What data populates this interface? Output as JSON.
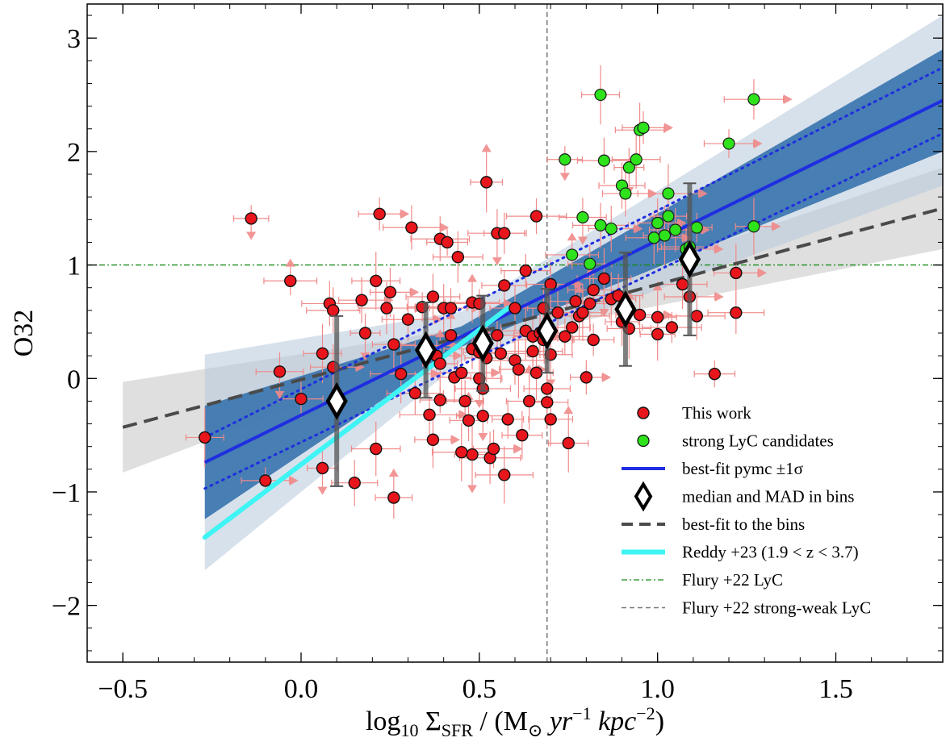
{
  "chart_data": {
    "type": "scatter",
    "title": "",
    "xlabel_parts": {
      "a": "log",
      "a_sub": "10",
      "b": " Σ",
      "b_sub": "SFR",
      "c": " / (M",
      "c_sub": "⊙",
      "d": " yr",
      "d_sup": "−1",
      "e": " kpc",
      "e_sup": "−2",
      "f": ")"
    },
    "ylabel": "O32",
    "xlim": [
      -0.6,
      1.8
    ],
    "ylim": [
      -2.5,
      3.3
    ],
    "xticks": [
      {
        "v": -0.5,
        "label": "−0.5"
      },
      {
        "v": 0.0,
        "label": "0.0"
      },
      {
        "v": 0.5,
        "label": "0.5"
      },
      {
        "v": 1.0,
        "label": "1.0"
      },
      {
        "v": 1.5,
        "label": "1.5"
      }
    ],
    "yticks": [
      {
        "v": -2,
        "label": "−2"
      },
      {
        "v": -1,
        "label": "−1"
      },
      {
        "v": 0,
        "label": "0"
      },
      {
        "v": 1,
        "label": "1"
      },
      {
        "v": 2,
        "label": "2"
      },
      {
        "v": 3,
        "label": "3"
      }
    ],
    "colors": {
      "this_work": "#e8161c",
      "lyc": "#2ee21c",
      "errbar": "#f08a8a",
      "pymc": "#1f2ee0",
      "band": "#3f78b0",
      "bins": "#4a4a4a",
      "bins_band": "#d9d9d9",
      "reddy": "#3ff4f4",
      "flury_lyc": "#1a8a1a",
      "flury_sw": "#777777"
    },
    "this_work": [
      [
        -0.14,
        1.41
      ],
      [
        -0.03,
        0.86
      ],
      [
        -0.06,
        0.06
      ],
      [
        0.0,
        -0.18
      ],
      [
        0.06,
        0.22
      ],
      [
        0.08,
        0.66
      ],
      [
        0.09,
        0.6
      ],
      [
        0.09,
        0.1
      ],
      [
        0.15,
        -0.92
      ],
      [
        0.17,
        0.69
      ],
      [
        0.18,
        0.4
      ],
      [
        0.21,
        0.86
      ],
      [
        0.21,
        -0.62
      ],
      [
        0.22,
        1.45
      ],
      [
        0.24,
        0.62
      ],
      [
        0.25,
        0.76
      ],
      [
        0.26,
        0.3
      ],
      [
        0.26,
        -1.05
      ],
      [
        0.28,
        0.04
      ],
      [
        0.3,
        0.52
      ],
      [
        0.31,
        1.33
      ],
      [
        0.32,
        -0.13
      ],
      [
        0.34,
        0.63
      ],
      [
        0.35,
        0.29
      ],
      [
        0.36,
        -0.32
      ],
      [
        0.37,
        -0.54
      ],
      [
        0.37,
        0.72
      ],
      [
        0.38,
        0.2
      ],
      [
        0.39,
        1.23
      ],
      [
        0.39,
        0.13
      ],
      [
        0.39,
        -0.19
      ],
      [
        0.4,
        0.62
      ],
      [
        0.41,
        1.2
      ],
      [
        0.42,
        0.62
      ],
      [
        0.42,
        0.38
      ],
      [
        0.43,
        0.01
      ],
      [
        0.44,
        1.07
      ],
      [
        0.45,
        0.05
      ],
      [
        0.46,
        -0.2
      ],
      [
        0.47,
        -0.37
      ],
      [
        0.48,
        0.67
      ],
      [
        0.48,
        0.26
      ],
      [
        0.5,
        0.66
      ],
      [
        0.5,
        0.23
      ],
      [
        0.5,
        0.0
      ],
      [
        0.51,
        -0.09
      ],
      [
        0.51,
        -0.33
      ],
      [
        0.52,
        1.73
      ],
      [
        0.52,
        0.18
      ],
      [
        0.53,
        -0.7
      ],
      [
        0.55,
        1.28
      ],
      [
        0.55,
        0.38
      ],
      [
        0.57,
        1.28
      ],
      [
        0.57,
        0.82
      ],
      [
        0.58,
        -0.36
      ],
      [
        0.6,
        0.16
      ],
      [
        0.61,
        0.08
      ],
      [
        0.62,
        -0.5
      ],
      [
        0.63,
        0.95
      ],
      [
        0.63,
        0.42
      ],
      [
        0.64,
        -0.2
      ],
      [
        0.65,
        0.37
      ],
      [
        0.65,
        0.24
      ],
      [
        0.66,
        1.43
      ],
      [
        0.66,
        0.05
      ],
      [
        0.67,
        0.4
      ],
      [
        0.68,
        0.62
      ],
      [
        0.68,
        0.34
      ],
      [
        0.69,
        -0.09
      ],
      [
        0.69,
        -0.21
      ],
      [
        0.7,
        0.83
      ],
      [
        0.7,
        0.21
      ],
      [
        0.7,
        -0.36
      ],
      [
        0.72,
        0.58
      ],
      [
        0.74,
        0.37
      ],
      [
        0.75,
        -0.57
      ],
      [
        0.76,
        0.45
      ],
      [
        0.77,
        0.68
      ],
      [
        0.78,
        0.55
      ],
      [
        0.79,
        0.58
      ],
      [
        0.8,
        0.01
      ],
      [
        0.81,
        0.66
      ],
      [
        0.82,
        0.34
      ],
      [
        0.82,
        0.78
      ],
      [
        0.85,
        0.88
      ],
      [
        0.87,
        0.7
      ],
      [
        0.89,
        0.73
      ],
      [
        0.9,
        0.5
      ],
      [
        0.92,
        0.44
      ],
      [
        0.95,
        0.56
      ],
      [
        1.0,
        0.39
      ],
      [
        1.0,
        0.54
      ],
      [
        1.04,
        0.45
      ],
      [
        1.07,
        0.83
      ],
      [
        1.09,
        0.72
      ],
      [
        1.11,
        0.55
      ],
      [
        1.16,
        0.04
      ],
      [
        1.22,
        0.58
      ],
      [
        1.22,
        0.93
      ],
      [
        -0.27,
        -0.52
      ],
      [
        -0.1,
        -0.9
      ],
      [
        0.06,
        -0.79
      ],
      [
        0.54,
        -0.62
      ],
      [
        0.57,
        -0.85
      ],
      [
        0.48,
        -0.67
      ],
      [
        0.45,
        -0.65
      ],
      [
        0.6,
        0.62
      ],
      [
        0.56,
        0.22
      ]
    ],
    "lyc": [
      [
        0.74,
        1.93
      ],
      [
        0.76,
        1.09
      ],
      [
        0.79,
        1.42
      ],
      [
        0.81,
        1.01
      ],
      [
        0.84,
        2.5
      ],
      [
        0.84,
        1.35
      ],
      [
        0.85,
        1.92
      ],
      [
        0.87,
        1.32
      ],
      [
        0.9,
        1.7
      ],
      [
        0.91,
        1.63
      ],
      [
        0.92,
        1.86
      ],
      [
        0.94,
        1.93
      ],
      [
        0.95,
        2.19
      ],
      [
        0.96,
        2.21
      ],
      [
        0.99,
        1.24
      ],
      [
        1.0,
        1.37
      ],
      [
        1.02,
        1.26
      ],
      [
        1.03,
        1.43
      ],
      [
        1.03,
        1.63
      ],
      [
        1.05,
        1.31
      ],
      [
        1.08,
        1.14
      ],
      [
        1.09,
        1.16
      ],
      [
        1.11,
        1.33
      ],
      [
        1.2,
        2.07
      ],
      [
        1.27,
        2.46
      ],
      [
        1.27,
        1.34
      ]
    ],
    "bins": [
      {
        "x": 0.1,
        "y": -0.2,
        "err": 0.75
      },
      {
        "x": 0.35,
        "y": 0.25,
        "err": 0.42
      },
      {
        "x": 0.51,
        "y": 0.31,
        "err": 0.42
      },
      {
        "x": 0.69,
        "y": 0.42,
        "err": 0.37
      },
      {
        "x": 0.91,
        "y": 0.61,
        "err": 0.5
      },
      {
        "x": 1.09,
        "y": 1.05,
        "err": 0.67
      }
    ],
    "pymc_fit": {
      "x": [
        -0.27,
        1.8
      ],
      "y": [
        -0.74,
        2.45
      ],
      "lo": [
        -0.97,
        2.16
      ],
      "hi": [
        -0.52,
        2.74
      ]
    },
    "bins_fit": {
      "x": [
        -0.5,
        1.8
      ],
      "y": [
        -0.43,
        1.5
      ]
    },
    "reddy": {
      "x": [
        -0.27,
        0.58
      ],
      "y": [
        -1.4,
        0.62
      ]
    },
    "flury_lyc_y": 1.0,
    "flury_sw_x": 0.69,
    "legend": [
      {
        "label": "This work",
        "kind": "red-dot"
      },
      {
        "label": "strong LyC candidates",
        "kind": "green-dot"
      },
      {
        "label": "best-fit pymc ±1σ",
        "kind": "blue-line"
      },
      {
        "label": "median and MAD in bins",
        "kind": "diamond"
      },
      {
        "label": "best-fit to the bins",
        "kind": "dark-dash"
      },
      {
        "label": "Reddy +23 (1.9 < z < 3.7)",
        "kind": "cyan-line"
      },
      {
        "label": "Flury +22 LyC",
        "kind": "green-dashdot"
      },
      {
        "label": "Flury +22 strong-weak LyC",
        "kind": "gray-dash"
      }
    ]
  }
}
